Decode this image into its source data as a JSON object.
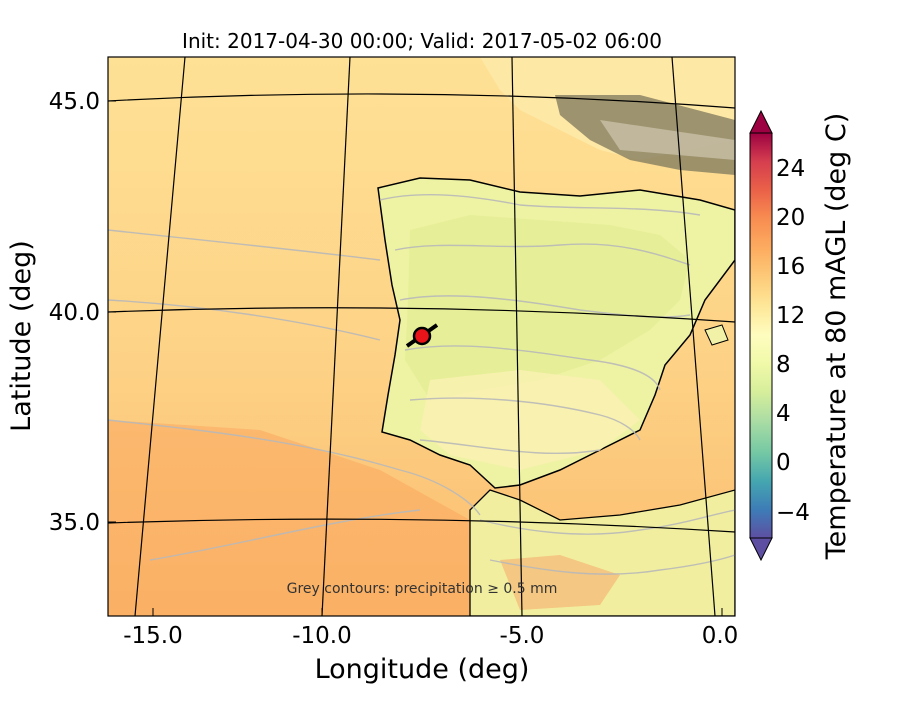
{
  "map": {
    "title": "Init: 2017-04-30 00:00; Valid: 2017-05-02 06:00",
    "xlabel": "Longitude (deg)",
    "ylabel": "Latitude (deg)",
    "note": "Grey contours: precipitation ≥ 0.5 mm",
    "projection": "conic",
    "gridlines": true,
    "lon_ticks": [
      "-15.0",
      "-10.0",
      "-5.0",
      "0.0"
    ],
    "lat_ticks": [
      "45.0",
      "40.0",
      "35.0"
    ],
    "marker": {
      "type": "site",
      "lon": -7.6,
      "lat": 39.4,
      "color": "#e8141a"
    }
  },
  "colorbar": {
    "label": "Temperature at 80 mAGL (deg C)",
    "ticks": [
      "24",
      "20",
      "16",
      "12",
      "8",
      "4",
      "0",
      "−4"
    ],
    "range": [
      -6,
      28
    ],
    "extend": "both",
    "palette": [
      "#5e4fa2",
      "#3d7cb7",
      "#45a6b0",
      "#74c8a4",
      "#abdda4",
      "#d6ee9b",
      "#f0f9a8",
      "#fefdbf",
      "#fee89a",
      "#fdcc7b",
      "#fdae61",
      "#f88c51",
      "#ea6048",
      "#d53e4f",
      "#9e0142"
    ],
    "legend_position": "right",
    "legend_side": "right",
    "legend_orientation": "vertical"
  }
}
